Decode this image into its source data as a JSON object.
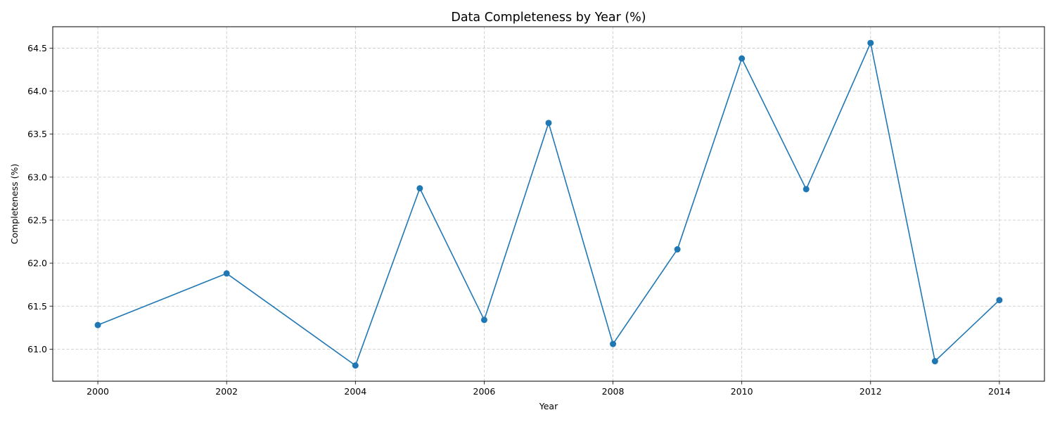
{
  "chart_data": {
    "type": "line",
    "title": "Data Completeness by Year (%)",
    "xlabel": "Year",
    "ylabel": "Completeness (%)",
    "x": [
      2000,
      2002,
      2004,
      2005,
      2006,
      2007,
      2008,
      2009,
      2010,
      2011,
      2012,
      2013,
      2014
    ],
    "series": [
      {
        "values": [
          61.28,
          61.88,
          60.81,
          62.87,
          61.34,
          63.63,
          61.06,
          62.16,
          64.38,
          62.86,
          64.56,
          60.86,
          61.57
        ],
        "color": "#1f77b4",
        "marker": "circle"
      }
    ],
    "xticks": [
      "2000",
      "2002",
      "2004",
      "2006",
      "2008",
      "2010",
      "2012",
      "2014"
    ],
    "yticks": [
      "61.0",
      "61.5",
      "62.0",
      "62.5",
      "63.0",
      "63.5",
      "64.0",
      "64.5"
    ],
    "xlim": [
      1999.3,
      2014.7
    ],
    "ylim": [
      60.627,
      64.749
    ],
    "grid": true,
    "grid_style": "dashed",
    "grid_color": "#b0b0b0",
    "axis_color": "#000000"
  }
}
